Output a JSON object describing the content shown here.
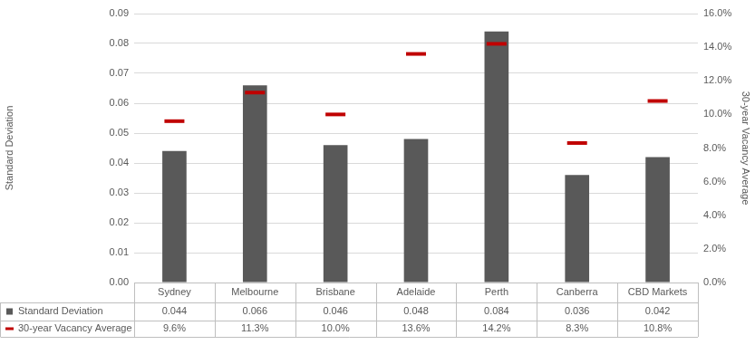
{
  "chart_data": {
    "type": "bar",
    "categories": [
      "Sydney",
      "Melbourne",
      "Brisbane",
      "Adelaide",
      "Perth",
      "Canberra",
      "CBD Markets"
    ],
    "series": [
      {
        "name": "Standard Deviation",
        "type": "bar",
        "color": "#595959",
        "values": [
          0.044,
          0.066,
          0.046,
          0.048,
          0.084,
          0.036,
          0.042
        ]
      },
      {
        "name": "30-year Vacancy Average",
        "type": "line",
        "axis": "y2",
        "color": "#c00000",
        "marker": "dash",
        "line_style": "none",
        "values": [
          9.6,
          11.3,
          10.0,
          13.6,
          14.2,
          8.3,
          10.8
        ],
        "value_labels": [
          "9.6%",
          "11.3%",
          "10.0%",
          "13.6%",
          "14.2%",
          "8.3%",
          "10.8%"
        ]
      }
    ],
    "y_label": "Standard Deviation",
    "y2_label": "30-year Vacancy Average",
    "ylim": [
      0,
      0.09
    ],
    "yticks": [
      {
        "value": 0,
        "label": "0.00"
      },
      0.01,
      0.02,
      0.03,
      0.04,
      0.05,
      0.06,
      0.07,
      0.08,
      0.09
    ],
    "y2lim": [
      0,
      16
    ],
    "y2ticks": [
      {
        "value": 0,
        "label": "0.0%"
      },
      {
        "value": 2,
        "label": "2.0%"
      },
      {
        "value": 4,
        "label": "4.0%"
      },
      {
        "value": 6,
        "label": "6.0%"
      },
      {
        "value": 8,
        "label": "8.0%"
      },
      {
        "value": 10,
        "label": "10.0%"
      },
      {
        "value": 12,
        "label": "12.0%"
      },
      {
        "value": 14,
        "label": "14.0%"
      },
      {
        "value": 16,
        "label": "16.0%"
      }
    ],
    "grid": true
  }
}
